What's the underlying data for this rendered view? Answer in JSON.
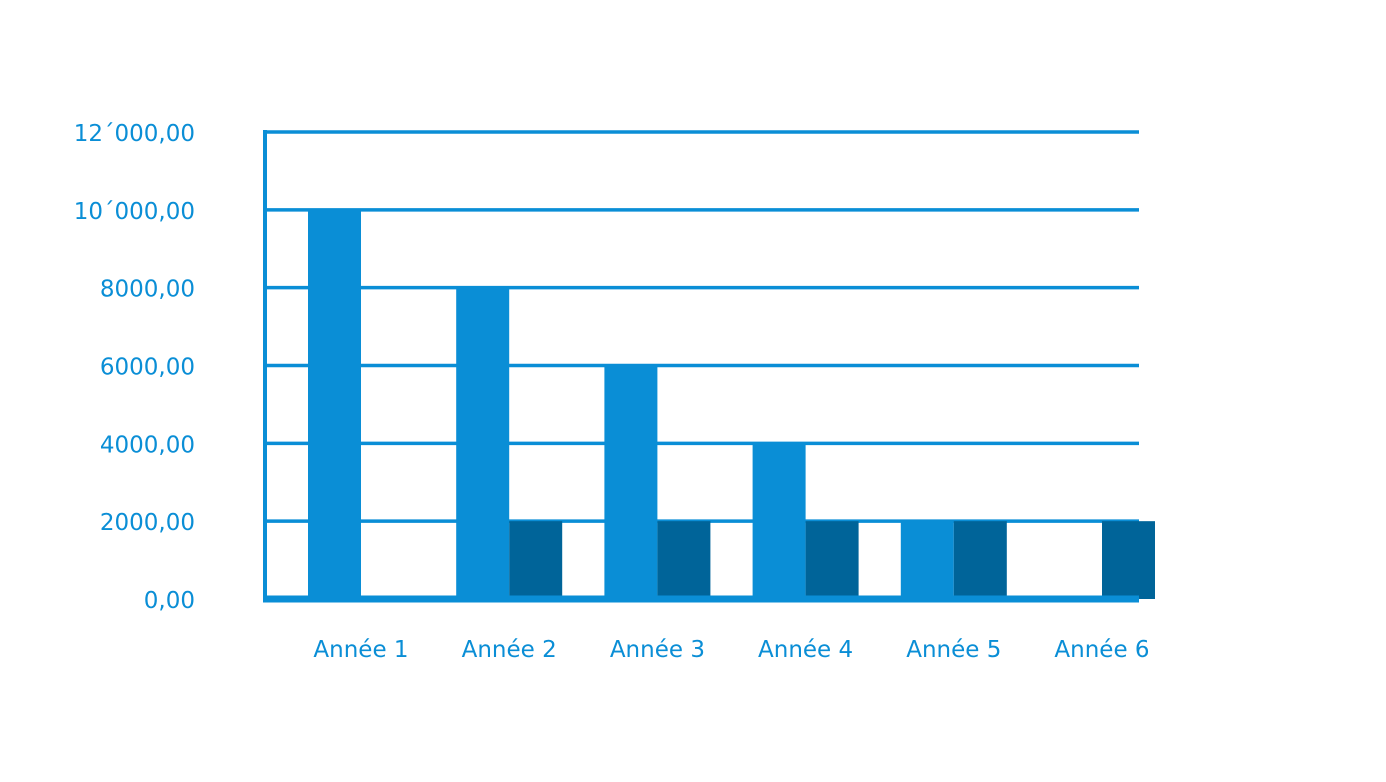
{
  "chart_data": {
    "type": "bar",
    "title": "",
    "xlabel": "",
    "ylabel": "",
    "categories": [
      "Année 1",
      "Année 2",
      "Année 3",
      "Année 4",
      "Année 5",
      "Année 6"
    ],
    "series": [
      {
        "values": [
          10000,
          8000,
          6000,
          4000,
          2000,
          0
        ],
        "color": "#0A8ED6"
      },
      {
        "values": [
          0,
          2000,
          2000,
          2000,
          2000,
          2000
        ],
        "color": "#006499"
      }
    ],
    "ylim": [
      0,
      12000
    ],
    "y_ticks": [
      0,
      2000,
      4000,
      6000,
      8000,
      10000,
      12000
    ],
    "y_tick_labels": [
      "0,00",
      "2000,00",
      "4000,00",
      "6000,00",
      "8000,00",
      "10´000,00",
      "12´000,00"
    ],
    "grid": true,
    "legend": "none",
    "colors": {
      "axis": "#0A8ED6",
      "text": "#0A8ED6",
      "background": "#FFFFFF"
    }
  }
}
